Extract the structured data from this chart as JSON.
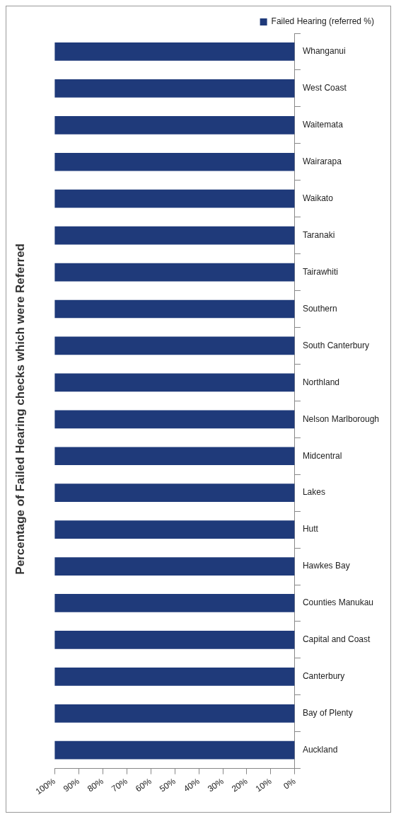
{
  "chart_data": {
    "type": "bar",
    "orientation": "horizontal",
    "title": "Percentage of Failed Hearing checks which were Referred",
    "categories": [
      "Whanganui",
      "West Coast",
      "Waitemata",
      "Wairarapa",
      "Waikato",
      "Taranaki",
      "Tairawhiti",
      "Southern",
      "South Canterbury",
      "Northland",
      "Nelson Marlborough",
      "Midcentral",
      "Lakes",
      "Hutt",
      "Hawkes Bay",
      "Counties Manukau",
      "Capital and Coast",
      "Canterbury",
      "Bay of Plenty",
      "Auckland"
    ],
    "series": [
      {
        "name": "Failed Hearing (referred %)",
        "color": "#1f3a7a",
        "values": [
          100,
          100,
          100,
          100,
          100,
          100,
          100,
          100,
          100,
          100,
          100,
          100,
          100,
          100,
          100,
          100,
          100,
          100,
          100,
          100
        ]
      }
    ],
    "xlim": [
      100,
      0
    ],
    "xticks": [
      {
        "value": 100,
        "label": "100%"
      },
      {
        "value": 90,
        "label": "90%"
      },
      {
        "value": 80,
        "label": "80%"
      },
      {
        "value": 70,
        "label": "70%"
      },
      {
        "value": 60,
        "label": "60%"
      },
      {
        "value": 50,
        "label": "50%"
      },
      {
        "value": 40,
        "label": "40%"
      },
      {
        "value": 30,
        "label": "30%"
      },
      {
        "value": 20,
        "label": "20%"
      },
      {
        "value": 10,
        "label": "10%"
      },
      {
        "value": 0,
        "label": "0%"
      }
    ],
    "legend": "top right",
    "grid": false
  }
}
